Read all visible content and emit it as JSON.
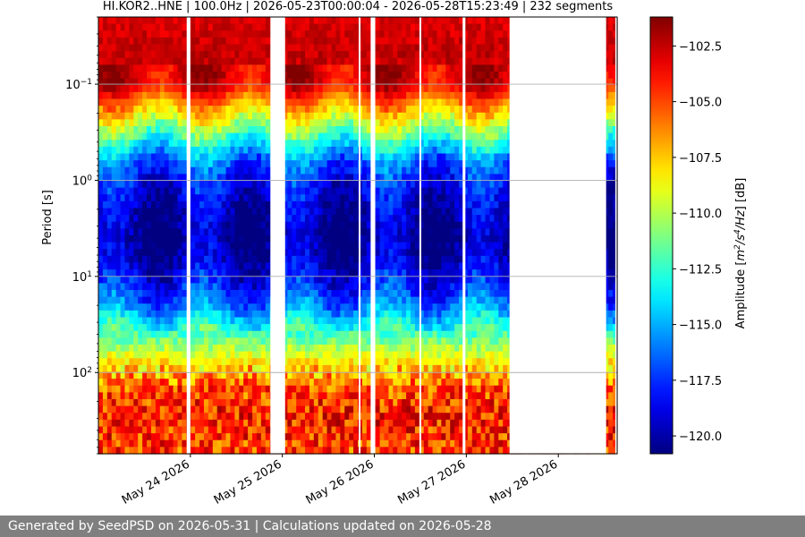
{
  "chart_data": {
    "type": "heatmap",
    "title": "HI.KOR2..HNE | 100.0Hz | 2026-05-23T00:00:04 - 2026-05-28T15:23:49 | 232 segments",
    "xlabel": "",
    "ylabel": "Period [s]",
    "yscale": "log",
    "y_inverted": true,
    "ylim": [
      0.02,
      700
    ],
    "y_ticks": [
      {
        "value": 0.1,
        "label_base": "10",
        "label_exp": "−1"
      },
      {
        "value": 1,
        "label_base": "10",
        "label_exp": "0"
      },
      {
        "value": 10,
        "label_base": "10",
        "label_exp": "1"
      },
      {
        "value": 100,
        "label_base": "10",
        "label_exp": "2"
      }
    ],
    "x_range_days": [
      0,
      5.64
    ],
    "x_ticks": [
      {
        "day": 1,
        "label": "May 24 2026"
      },
      {
        "day": 2,
        "label": "May 25 2026"
      },
      {
        "day": 3,
        "label": "May 26 2026"
      },
      {
        "day": 4,
        "label": "May 27 2026"
      },
      {
        "day": 5,
        "label": "May 28 2026"
      }
    ],
    "data_gaps_days": [
      [
        0.96,
        1.0
      ],
      [
        1.87,
        2.03
      ],
      [
        2.83,
        2.85
      ],
      [
        2.96,
        3.01
      ],
      [
        3.49,
        3.51
      ],
      [
        3.96,
        3.99
      ],
      [
        4.47,
        5.52
      ],
      [
        5.62,
        5.64
      ]
    ],
    "colorbar": {
      "label": "Amplitude [m²/s⁴/Hz] [dB]",
      "label_main": "Amplitude [",
      "label_m": "m",
      "label_sup1": "2",
      "label_s": "/s",
      "label_sup2": "4",
      "label_hz": "/Hz",
      "label_end": "] [dB]",
      "range": [
        -120.8,
        -101.2
      ],
      "ticks": [
        -102.5,
        -105.0,
        -107.5,
        -110.0,
        -112.5,
        -115.0,
        -117.5,
        -120.0
      ],
      "tick_labels": [
        "−102.5",
        "−105.0",
        "−107.5",
        "−110.0",
        "−112.5",
        "−115.0",
        "−117.5",
        "−120.0"
      ],
      "colormap": "jet"
    },
    "psd_profile_db": [
      {
        "period": 0.02,
        "db": -103
      },
      {
        "period": 0.05,
        "db": -102.5
      },
      {
        "period": 0.1,
        "db": -103
      },
      {
        "period": 0.2,
        "db": -108
      },
      {
        "period": 0.35,
        "db": -112
      },
      {
        "period": 0.6,
        "db": -116
      },
      {
        "period": 1,
        "db": -118
      },
      {
        "period": 2,
        "db": -119.5
      },
      {
        "period": 4,
        "db": -120.3
      },
      {
        "period": 7,
        "db": -119.5
      },
      {
        "period": 12,
        "db": -118
      },
      {
        "period": 20,
        "db": -116
      },
      {
        "period": 40,
        "db": -112
      },
      {
        "period": 80,
        "db": -108
      },
      {
        "period": 150,
        "db": -105
      },
      {
        "period": 300,
        "db": -104
      },
      {
        "period": 700,
        "db": -105
      }
    ],
    "grid": "horizontal"
  },
  "footer": {
    "text": "Generated by SeedPSD on 2026-05-31 | Calculations updated on 2026-05-28"
  }
}
